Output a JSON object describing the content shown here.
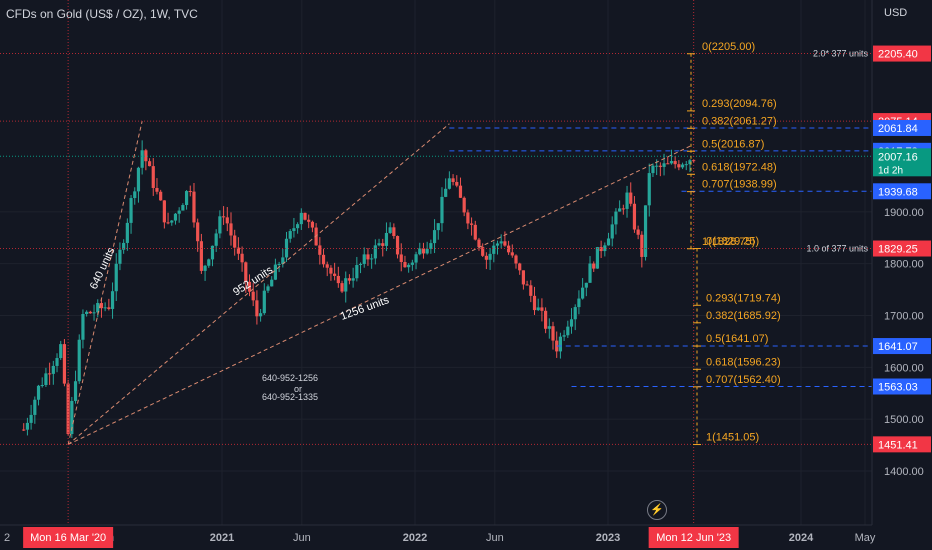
{
  "title": "CFDs on Gold (US$ / OZ), 1W, TVC",
  "currency": "USD",
  "flash_icon": "lightning-icon",
  "colors": {
    "up": "#26a69a",
    "down": "#ef5350",
    "fib": "#f5a623",
    "blue": "#2962ff",
    "red_label": "#f23645",
    "last_price": "#089981"
  },
  "chart_data": {
    "type": "candlestick",
    "x_ticks": [
      "2021",
      "Jun",
      "2022",
      "Jun",
      "2023",
      "2024",
      "May"
    ],
    "y_ticks": [
      1400,
      1500,
      1600,
      1700,
      1800,
      1900
    ],
    "y_tick_labels": [
      "1400.00",
      "1500.00",
      "1600.00",
      "1700.00",
      "1800.00",
      "1900.00"
    ],
    "price_labels": [
      {
        "text": "2205.40",
        "value": 2205.4,
        "kind": "red"
      },
      {
        "text": "2075.14",
        "value": 2075.14,
        "kind": "red"
      },
      {
        "text": "2061.84",
        "value": 2061.84,
        "kind": "blue"
      },
      {
        "text": "2017.73",
        "value": 2017.73,
        "kind": "blue"
      },
      {
        "text": "2007.16",
        "value": 2007.16,
        "kind": "green",
        "sub": "1d 2h"
      },
      {
        "text": "1939.68",
        "value": 1939.68,
        "kind": "blue"
      },
      {
        "text": "1829.25",
        "value": 1829.25,
        "kind": "red"
      },
      {
        "text": "1641.07",
        "value": 1641.07,
        "kind": "blue"
      },
      {
        "text": "1563.03",
        "value": 1563.03,
        "kind": "blue"
      },
      {
        "text": "1451.41",
        "value": 1451.41,
        "kind": "red"
      }
    ],
    "fib_upper": [
      {
        "text": "0(2205.00)",
        "value": 2205.0
      },
      {
        "text": "0.293(2094.76)",
        "value": 2094.76
      },
      {
        "text": "0.382(2061.27)",
        "value": 2061.27
      },
      {
        "text": "0.5(2016.87)",
        "value": 2016.87
      },
      {
        "text": "0.618(1972.48)",
        "value": 1972.48
      },
      {
        "text": "0.707(1938.99)",
        "value": 1938.99
      },
      {
        "text": "1(1828.75)",
        "value": 1828.75
      }
    ],
    "fib_lower": [
      {
        "text": "0(1829.25)",
        "value": 1829.25
      },
      {
        "text": "0.293(1719.74)",
        "value": 1719.74
      },
      {
        "text": "0.382(1685.92)",
        "value": 1685.92
      },
      {
        "text": "0.5(1641.07)",
        "value": 1641.07
      },
      {
        "text": "0.618(1596.23)",
        "value": 1596.23
      },
      {
        "text": "0.707(1562.40)",
        "value": 1562.4
      },
      {
        "text": "1(1451.05)",
        "value": 1451.05
      }
    ],
    "line_labels": [
      {
        "text": "2.0* 377 units",
        "value": 2205.4
      },
      {
        "text": "1.0 of 377 units",
        "value": 1829.25
      }
    ],
    "swing_labels": [
      "640 units",
      "952 units",
      "1256 units"
    ],
    "annotation": [
      "640-952-1256",
      "or",
      "640-952-1335"
    ],
    "date_labels": [
      "Mon 16 Mar '20",
      "Mon 12 Jun '23"
    ],
    "swing_points": {
      "low_2020": {
        "date": "2020-03-16",
        "price": 1451
      },
      "high_2020": {
        "date": "2020-08-03",
        "price": 2075
      },
      "high_2022": {
        "date": "2022-03-07",
        "price": 2070
      },
      "low_2022": {
        "date": "2022-09-26",
        "price": 1615
      },
      "last": {
        "date": "2023-06-12",
        "price": 2007.16
      }
    }
  }
}
